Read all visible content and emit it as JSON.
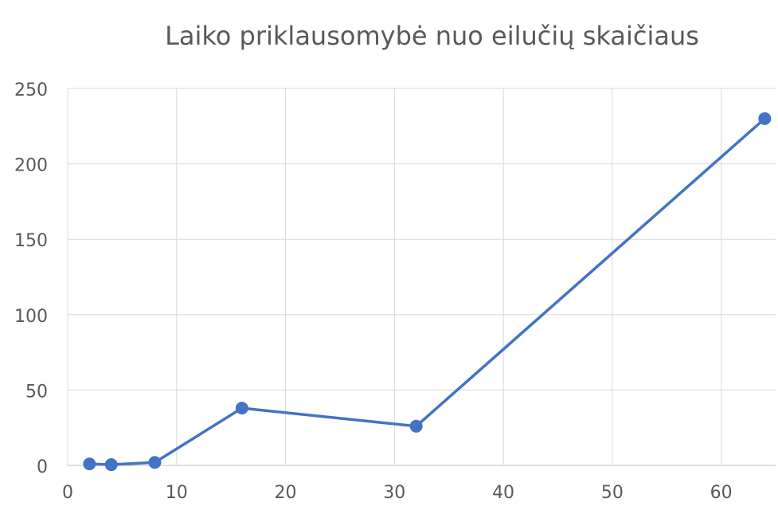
{
  "chart_data": {
    "type": "scatter",
    "title": "Laiko priklausomybė nuo eilučių skaičiaus",
    "xlabel": "",
    "ylabel": "",
    "xlim": [
      0,
      65
    ],
    "ylim": [
      0,
      250
    ],
    "xticks": [
      0,
      10,
      20,
      30,
      40,
      50,
      60
    ],
    "yticks": [
      0,
      50,
      100,
      150,
      200,
      250
    ],
    "grid": true,
    "line_color": "#4472C4",
    "marker": "circle",
    "series": [
      {
        "x": [
          2,
          4,
          8,
          16,
          32,
          64
        ],
        "y": [
          1,
          0.5,
          2,
          38,
          26,
          230
        ]
      }
    ]
  }
}
